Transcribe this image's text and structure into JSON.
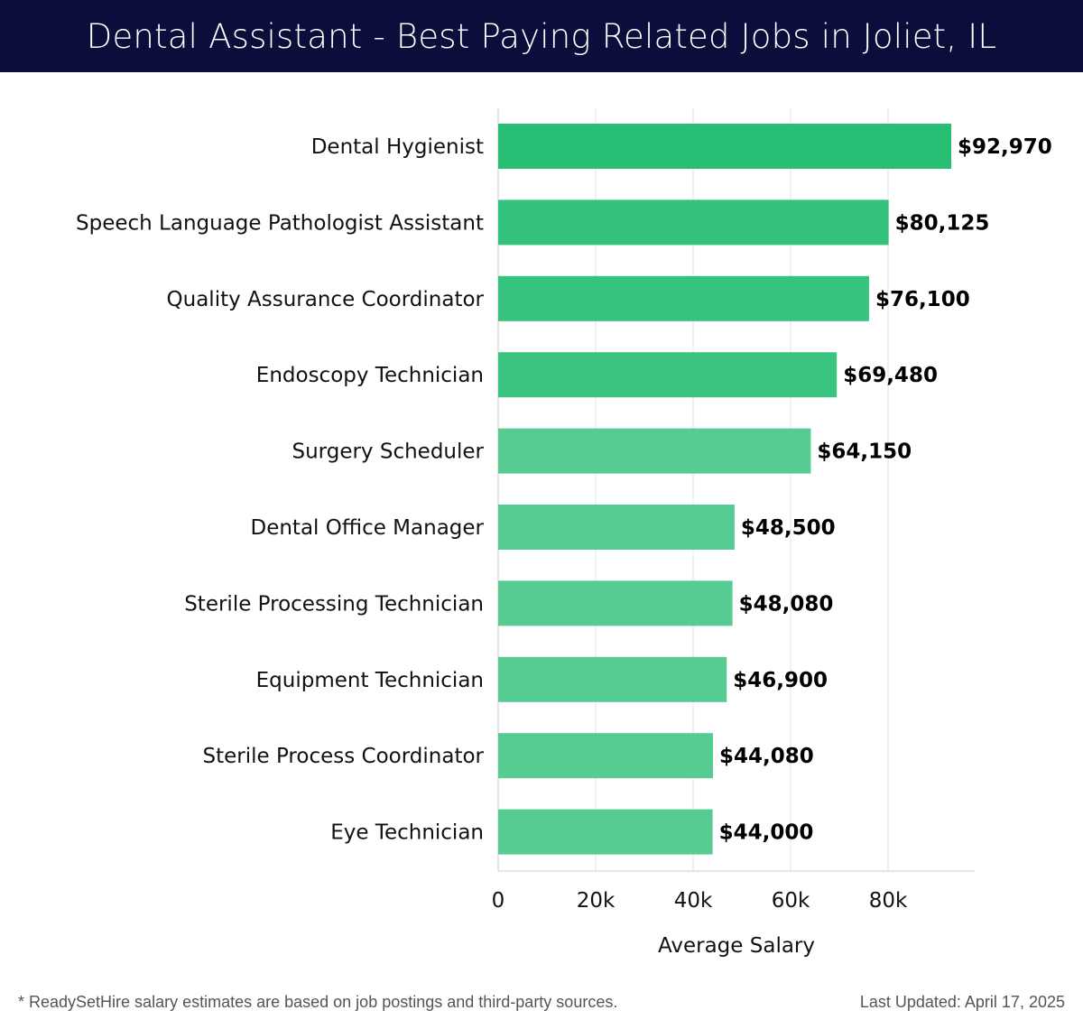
{
  "header": {
    "title": "Dental Assistant - Best Paying Related Jobs in Joliet, IL"
  },
  "chart_data": {
    "type": "bar",
    "orientation": "horizontal",
    "categories": [
      "Dental Hygienist",
      "Speech Language Pathologist Assistant",
      "Quality Assurance Coordinator",
      "Endoscopy Technician",
      "Surgery Scheduler",
      "Dental Office Manager",
      "Sterile Processing Technician",
      "Equipment Technician",
      "Sterile Process Coordinator",
      "Eye Technician"
    ],
    "values": [
      92970,
      80125,
      76100,
      69480,
      64150,
      48500,
      48080,
      46900,
      44080,
      44000
    ],
    "value_labels": [
      "$92,970",
      "$80,125",
      "$76,100",
      "$69,480",
      "$64,150",
      "$48,500",
      "$48,080",
      "$46,900",
      "$44,080",
      "$44,000"
    ],
    "xlabel": "Average Salary",
    "ylabel": "",
    "xlim": [
      0,
      98000
    ],
    "xticks": [
      0,
      20000,
      40000,
      60000,
      80000
    ],
    "xtick_labels": [
      "0",
      "20k",
      "40k",
      "60k",
      "80k"
    ],
    "grid": true,
    "colors": {
      "high": "#28bf74",
      "low": "#56cc93",
      "grid": "#e3e3e3",
      "axis": "#cccccc"
    }
  },
  "footer": {
    "note": "* ReadySetHire salary estimates are based on job postings and third-party sources.",
    "updated": "Last Updated: April 17, 2025"
  }
}
